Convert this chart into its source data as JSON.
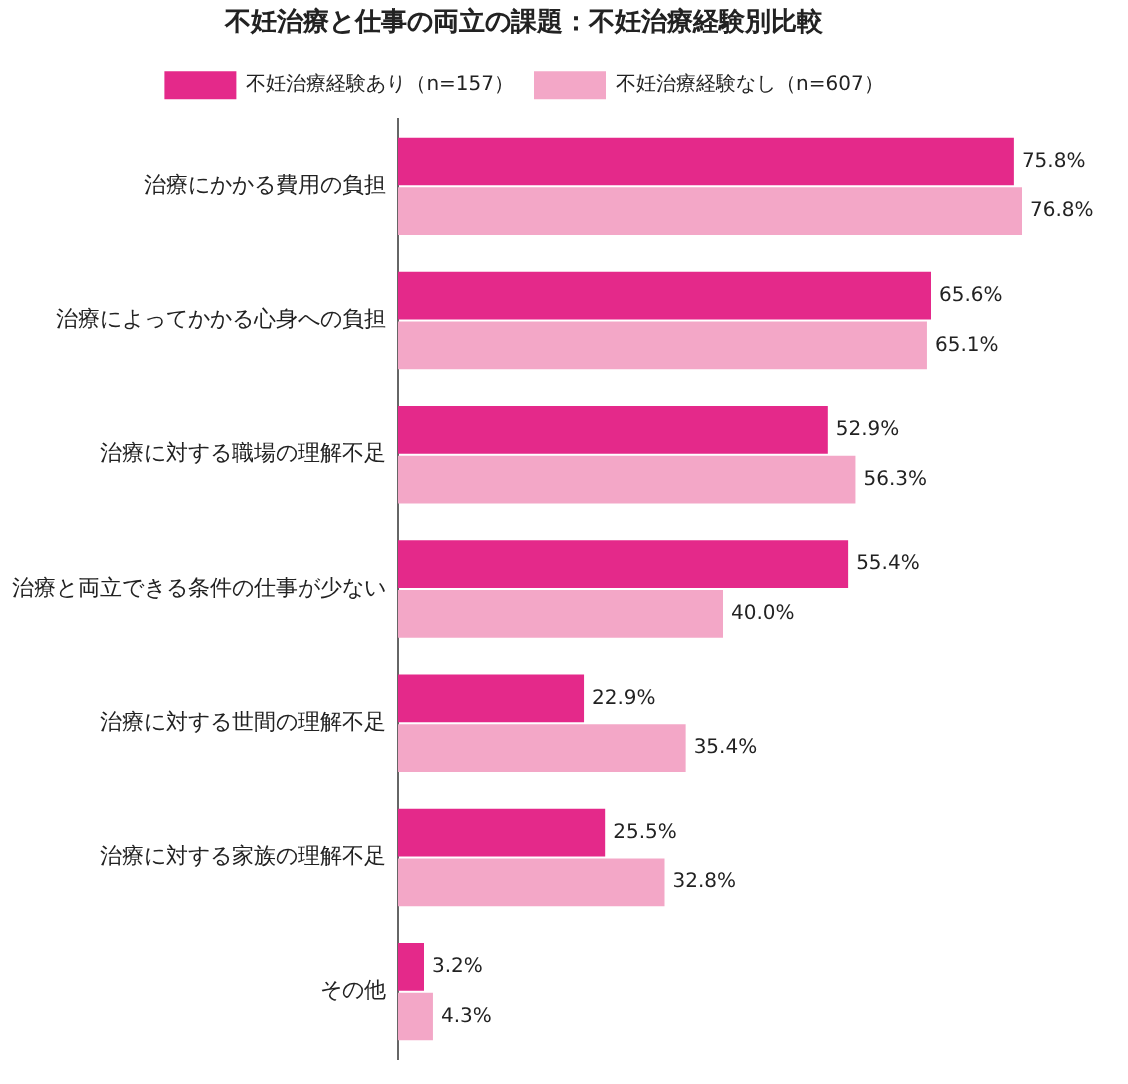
{
  "chart_data": {
    "type": "bar",
    "orientation": "horizontal",
    "title": "不妊治療と仕事の両立の課題：不妊治療経験別比較",
    "categories": [
      "治療にかかる費用の負担",
      "治療によってかかる心身への負担",
      "治療に対する職場の理解不足",
      "治療と両立できる条件の仕事が少ない",
      "治療に対する世間の理解不足",
      "治療に対する家族の理解不足",
      "その他"
    ],
    "series": [
      {
        "name": "不妊治療経験あり（n=157）",
        "color": "#e4298a",
        "values": [
          75.8,
          65.6,
          52.9,
          55.4,
          22.9,
          25.5,
          3.2
        ],
        "value_labels": [
          "75.8%",
          "65.6%",
          "52.9%",
          "55.4%",
          "22.9%",
          "25.5%",
          "3.2%"
        ]
      },
      {
        "name": "不妊治療経験なし（n=607）",
        "color": "#f3a7c7",
        "values": [
          76.8,
          65.1,
          56.3,
          40.0,
          35.4,
          32.8,
          4.3
        ],
        "value_labels": [
          "76.8%",
          "65.1%",
          "56.3%",
          "40.0%",
          "35.4%",
          "32.8%",
          "4.3%"
        ]
      }
    ],
    "legend": "top",
    "grid": false
  }
}
